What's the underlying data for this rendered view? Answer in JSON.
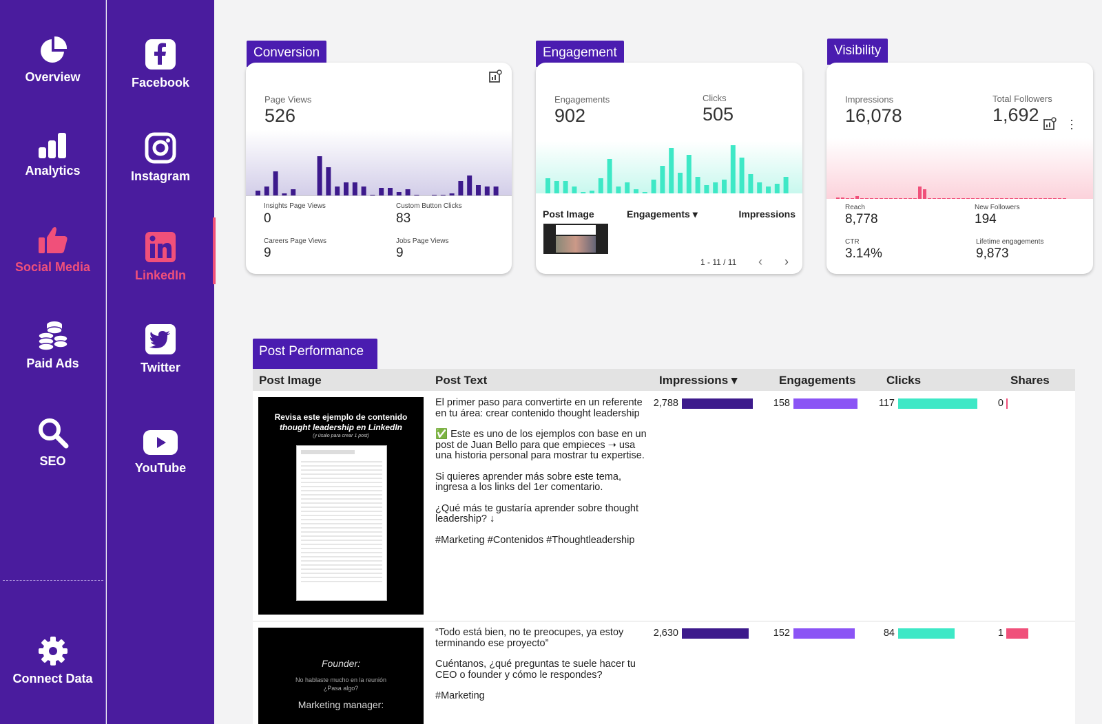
{
  "nav_primary": [
    {
      "label": "Overview",
      "icon": "pie-chart-icon"
    },
    {
      "label": "Analytics",
      "icon": "bar-chart-icon"
    },
    {
      "label": "Social Media",
      "icon": "thumbs-up-icon",
      "active": true
    },
    {
      "label": "Paid Ads",
      "icon": "coins-icon"
    },
    {
      "label": "SEO",
      "icon": "search-icon"
    },
    {
      "label": "Connect Data",
      "icon": "gear-icon"
    }
  ],
  "nav_secondary": [
    {
      "label": "Facebook",
      "icon": "facebook-icon"
    },
    {
      "label": "Instagram",
      "icon": "instagram-icon"
    },
    {
      "label": "LinkedIn",
      "icon": "linkedin-icon",
      "active": true
    },
    {
      "label": "Twitter",
      "icon": "twitter-icon"
    },
    {
      "label": "YouTube",
      "icon": "youtube-icon"
    }
  ],
  "colors": {
    "sidebar": "#4a1c9e",
    "accent_pink": "#f0507a",
    "conversion": "#3d1a8c",
    "engagement": "#3ee8c6",
    "visibility": "#f0507a",
    "engagement_bar": "#8b54f5"
  },
  "conversion": {
    "tab": "Conversion",
    "page_views_label": "Page Views",
    "page_views": "526",
    "metrics": [
      {
        "label": "Insights Page Views",
        "value": "0"
      },
      {
        "label": "Custom Button Clicks",
        "value": "83"
      },
      {
        "label": "Careers Page Views",
        "value": "9"
      },
      {
        "label": "Jobs Page Views",
        "value": "9"
      }
    ]
  },
  "engagement": {
    "tab": "Engagement",
    "engagements_label": "Engagements",
    "engagements": "902",
    "clicks_label": "Clicks",
    "clicks": "505",
    "col_post_image": "Post Image",
    "col_engagements": "Engagements",
    "col_impressions": "Impressions",
    "pagination": "1 - 11 / 11"
  },
  "visibility": {
    "tab": "Visibility",
    "impressions_label": "Impressions",
    "impressions": "16,078",
    "followers_label": "Total Followers",
    "followers": "1,692",
    "metrics": [
      {
        "label": "Reach",
        "value": "8,778"
      },
      {
        "label": "New Followers",
        "value": "194"
      },
      {
        "label": "CTR",
        "value": "3.14%"
      },
      {
        "label": "Lifetime engagements",
        "value": "9,873"
      }
    ]
  },
  "post_performance": {
    "title": "Post Performance",
    "columns": [
      "Post Image",
      "Post Text",
      "Impressions",
      "Engagements",
      "Clicks",
      "Shares"
    ],
    "rows": [
      {
        "text": [
          "El primer paso para convertirte en un referente en tu área: crear contenido thought leadership",
          "✅ Este es uno de los ejemplos con base en un post de Juan Bello para que empieces ➝ usa una historia personal para mostrar tu expertise.",
          "Si quieres aprender más sobre este tema, ingresa a los links del 1er comentario.",
          "¿Qué más te gustaría aprender sobre thought leadership? ↓",
          "#Marketing #Contenidos #Thoughtleadership"
        ],
        "impressions": "2,788",
        "engagements": "158",
        "clicks": "117",
        "shares": "0",
        "image_title": "Revisa este ejemplo de contenido",
        "image_title2": "thought leadership en LinkedIn",
        "image_sub": "(y úsalo para crear 1 post)"
      },
      {
        "text": [
          "“Todo está bien, no te preocupes, ya estoy terminando ese proyecto”",
          "Cuéntanos, ¿qué preguntas te suele hacer tu CEO o founder y cómo le respondes?",
          "#Marketing"
        ],
        "impressions": "2,630",
        "engagements": "152",
        "clicks": "84",
        "shares": "1",
        "image_title": "Founder:",
        "image_sub": "No hablaste mucho en la reunión ¿Pasa algo?",
        "image_title2": "Marketing manager:"
      }
    ]
  }
}
